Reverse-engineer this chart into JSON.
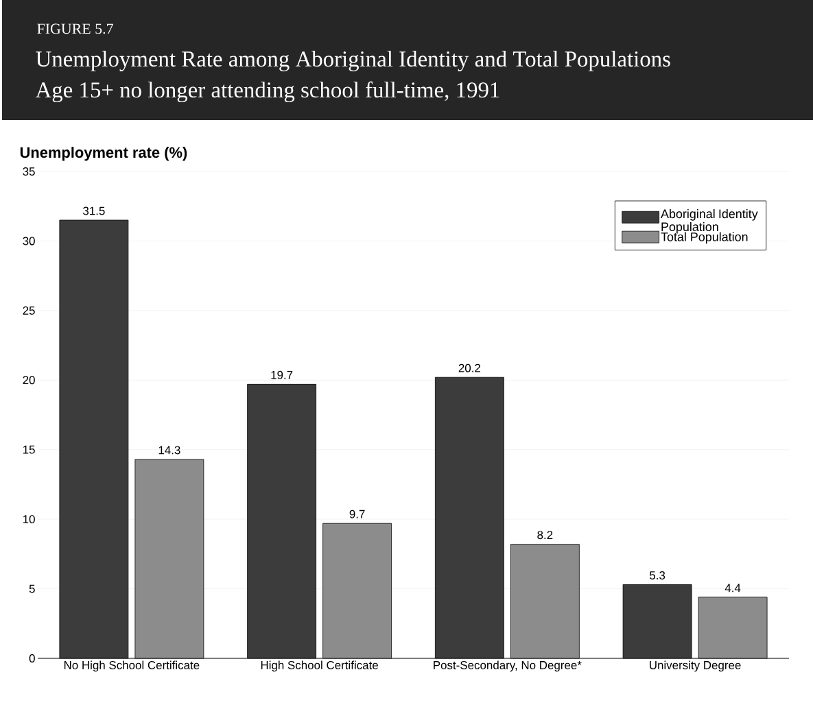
{
  "chart_data": {
    "type": "bar",
    "title": "Unemployment Rate among Aboriginal Identity and Total Populations",
    "subtitle": "Age 15+ no longer attending school full-time, 1991",
    "annotations": [
      "FIGURE 5.7"
    ],
    "ylabel": "Unemployment rate (%)",
    "categories": [
      "No High School Certificate",
      "High School Certificate",
      "Post-Secondary, No Degree*",
      "University Degree"
    ],
    "series": [
      {
        "name": "Aboriginal Identity Population",
        "color": "#3c3c3c",
        "values": [
          31.5,
          19.7,
          20.2,
          5.3
        ]
      },
      {
        "name": "Total Population",
        "color": "#8c8c8c",
        "values": [
          14.3,
          9.7,
          8.2,
          4.4
        ]
      }
    ],
    "ylim": [
      0,
      35
    ],
    "yticks": [
      0,
      5,
      10,
      15,
      20,
      25,
      30,
      35
    ],
    "grid": "y",
    "legend": "top right",
    "data_labels": true
  }
}
